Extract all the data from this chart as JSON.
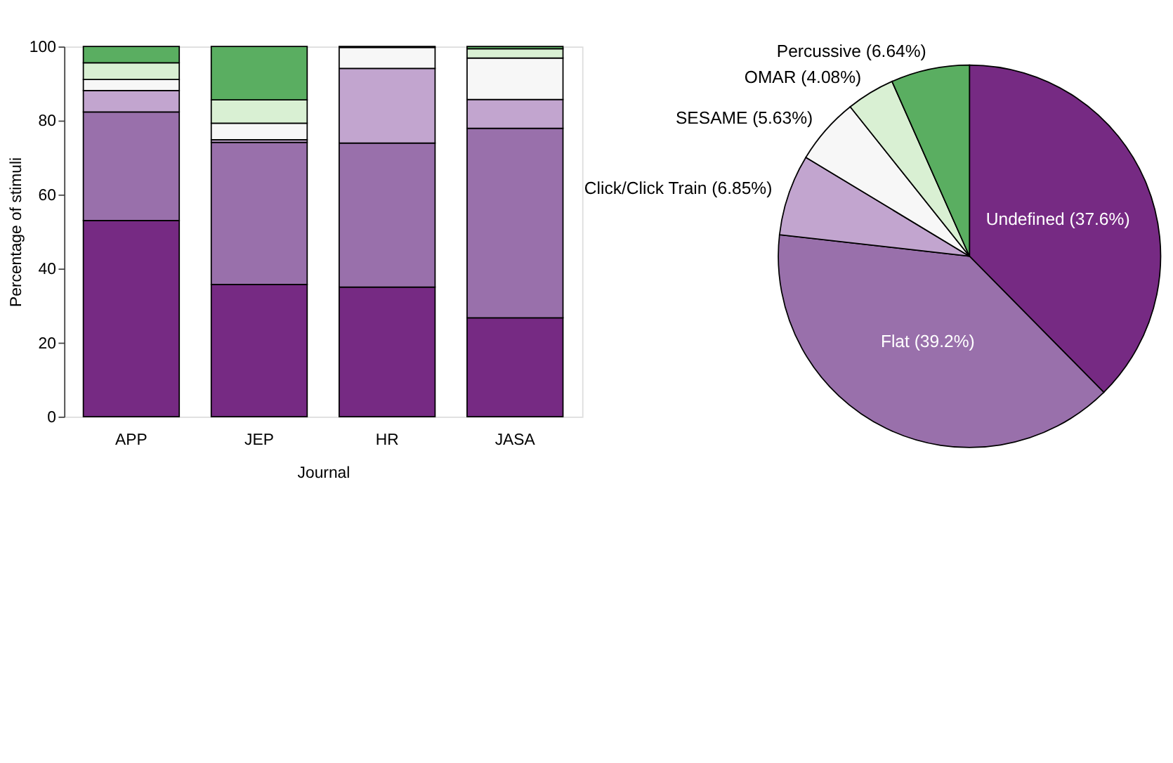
{
  "chart_data": [
    {
      "type": "bar",
      "stacked": true,
      "xlabel": "Journal",
      "ylabel": "Percentage of stimuli",
      "categories": [
        "APP",
        "JEP",
        "HR",
        "JASA"
      ],
      "ylim": [
        0,
        100
      ],
      "yticks": [
        0,
        20,
        40,
        60,
        80,
        100
      ],
      "grid": false,
      "legend": false,
      "series": [
        {
          "color": "#762a83",
          "values": [
            53,
            35.7,
            35,
            26.7
          ]
        },
        {
          "color": "#9970ab",
          "values": [
            29.3,
            38.4,
            38.9,
            51.2
          ]
        },
        {
          "color": "#c2a5cf",
          "values": [
            5.8,
            0.7,
            20.2,
            7.8
          ]
        },
        {
          "color": "#f7f7f7",
          "values": [
            3,
            4.5,
            5.7,
            11.2
          ]
        },
        {
          "color": "#d9f0d3",
          "values": [
            4.5,
            6.3,
            0,
            2.5
          ]
        },
        {
          "color": "#5aae61",
          "values": [
            4.4,
            14.4,
            0.2,
            0.6
          ]
        }
      ]
    },
    {
      "type": "pie",
      "categories": [
        "Undefined",
        "Flat",
        "Click/Click Train",
        "SESAME",
        "OMAR",
        "Percussive"
      ],
      "values": [
        37.6,
        39.2,
        6.85,
        5.63,
        4.08,
        6.64
      ],
      "value_labels": [
        "(37.6%)",
        "(39.2%)",
        "(6.85%)",
        "(5.63%)",
        "(4.08%)",
        "(6.64%)"
      ],
      "colors": [
        "#762a83",
        "#9970ab",
        "#c2a5cf",
        "#f7f7f7",
        "#d9f0d3",
        "#5aae61"
      ]
    }
  ]
}
